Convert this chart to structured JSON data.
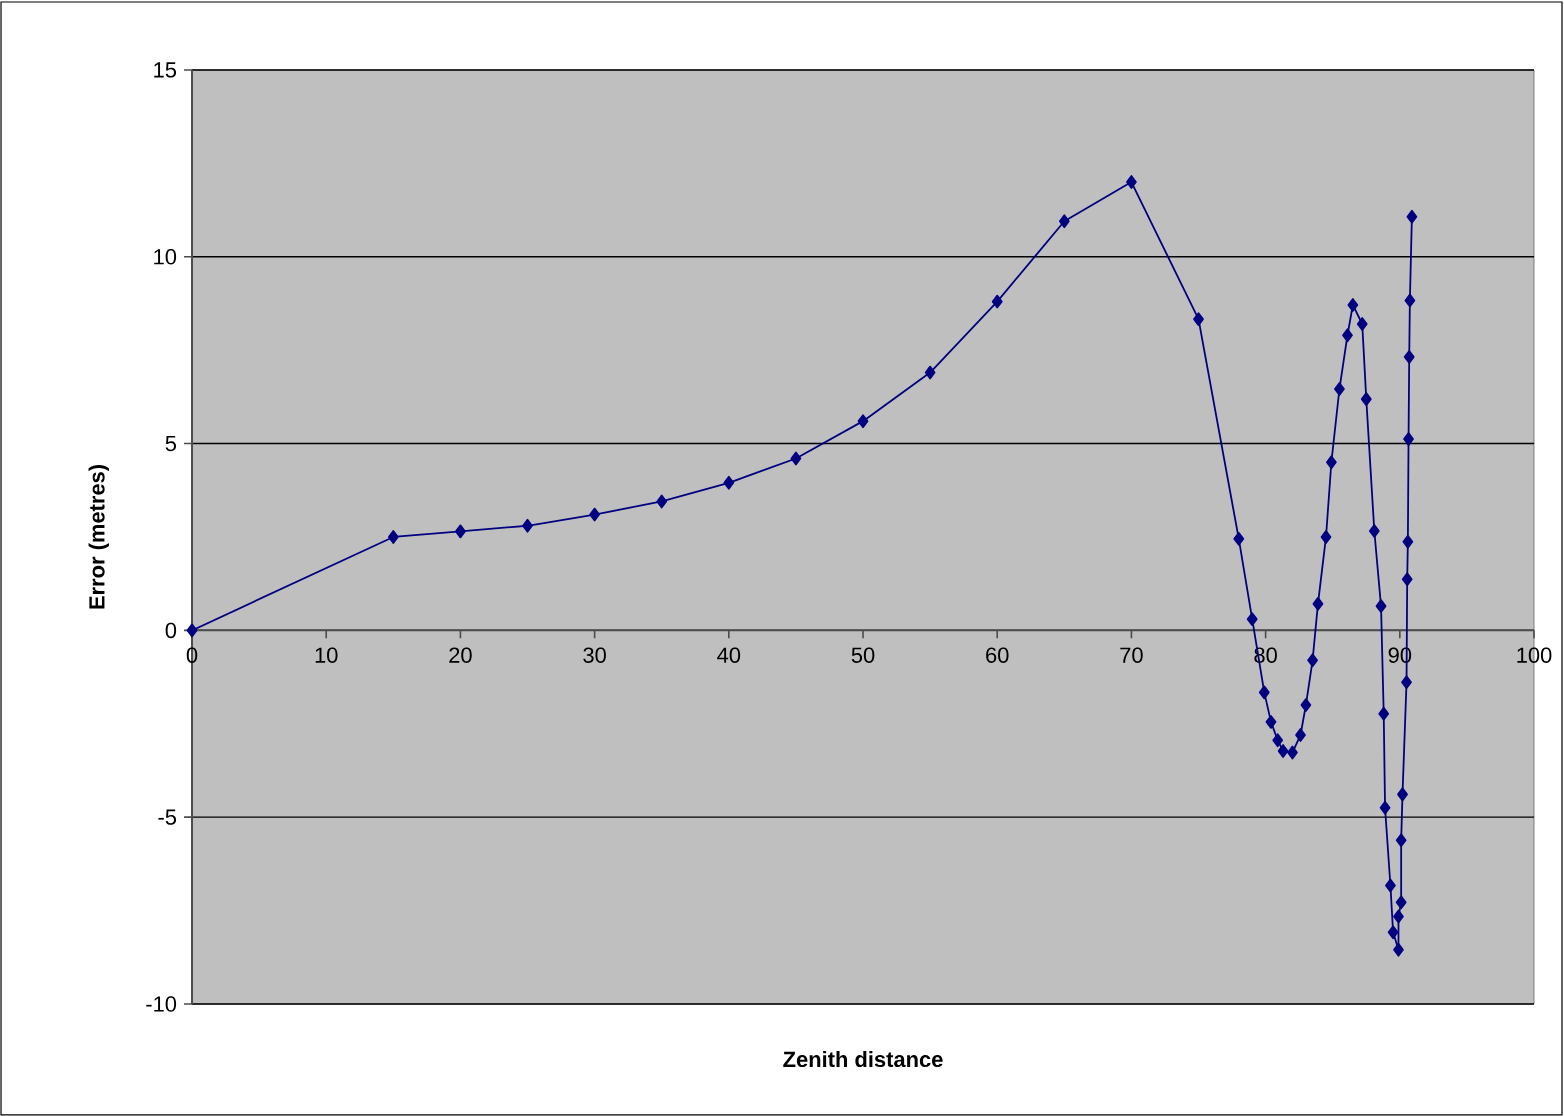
{
  "chart_data": {
    "type": "line",
    "xlabel": "Zenith distance",
    "ylabel": "Error (metres)",
    "x": [
      0,
      15,
      20,
      25,
      30,
      35,
      40,
      45,
      50,
      55,
      60,
      65,
      70,
      75,
      78,
      79,
      79.9,
      80.4,
      80.9,
      81.3,
      82,
      82.6,
      83,
      83.5,
      83.9,
      84.5,
      84.9,
      85.5,
      86.1,
      86.5,
      87.2,
      87.5,
      88.1,
      88.6,
      88.8,
      88.9,
      89.3,
      89.5,
      89.9,
      89.9,
      90.1,
      90.1,
      90.2,
      90.5,
      90.55,
      90.6,
      90.65,
      90.7,
      90.75,
      90.9
    ],
    "series": [
      {
        "color": "#000080",
        "values": [
          0,
          2.5,
          2.65,
          2.8,
          3.1,
          3.45,
          3.95,
          4.6,
          5.6,
          6.9,
          8.8,
          10.95,
          12.0,
          8.33,
          2.45,
          0.3,
          -1.66,
          -2.45,
          -2.94,
          -3.23,
          -3.27,
          -2.8,
          -2.0,
          -0.8,
          0.71,
          2.5,
          4.5,
          6.46,
          7.9,
          8.71,
          8.2,
          6.19,
          2.66,
          0.65,
          -2.23,
          -4.75,
          -6.83,
          -8.08,
          -8.55,
          -7.66,
          -7.28,
          -5.62,
          -4.39,
          -1.39,
          1.37,
          2.37,
          5.12,
          7.32,
          8.83,
          11.07
        ]
      }
    ],
    "xlim": [
      0,
      100
    ],
    "ylim": [
      -10,
      15
    ],
    "xticks": [
      0,
      10,
      20,
      30,
      40,
      50,
      60,
      70,
      80,
      90,
      100
    ],
    "yticks": [
      -10,
      -5,
      0,
      5,
      10,
      15
    ],
    "grid": "y",
    "marker": "diamond",
    "line_style": "solid"
  }
}
